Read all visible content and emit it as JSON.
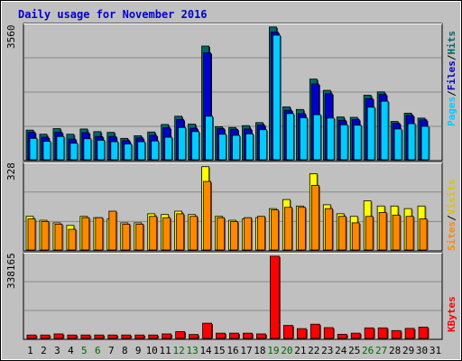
{
  "title": "Daily usage for November 2016",
  "colors": {
    "hits": "#006666",
    "files": "#0000cc",
    "pages": "#00ccff",
    "visits": "#ffff00",
    "sites": "#ff8800",
    "kbytes": "#ff0000",
    "weekend_day": "#006600",
    "weekday": "#000000",
    "title": "#0000cc"
  },
  "chart_data": [
    {
      "type": "bar",
      "panel": "hits-files-pages",
      "ylim": [
        0,
        3560
      ],
      "y_max_label": "3560",
      "legend": [
        "Pages",
        "/",
        "Files",
        "/",
        "Hits"
      ],
      "categories": [
        "1",
        "2",
        "3",
        "4",
        "5",
        "6",
        "7",
        "8",
        "9",
        "10",
        "11",
        "12",
        "13",
        "14",
        "15",
        "16",
        "17",
        "18",
        "19",
        "20",
        "21",
        "22",
        "23",
        "24",
        "25",
        "26",
        "27",
        "28",
        "29",
        "30",
        "31"
      ],
      "series": [
        {
          "name": "Hits",
          "values": [
            790,
            680,
            830,
            680,
            820,
            750,
            730,
            570,
            640,
            740,
            940,
            1160,
            950,
            3030,
            880,
            860,
            910,
            990,
            3540,
            1410,
            1340,
            2150,
            1850,
            1140,
            1130,
            1720,
            1810,
            1020,
            1240,
            1110,
            0
          ]
        },
        {
          "name": "Files",
          "values": [
            730,
            600,
            730,
            550,
            720,
            620,
            620,
            510,
            580,
            650,
            850,
            1070,
            840,
            2850,
            830,
            810,
            820,
            920,
            3400,
            1320,
            1230,
            2020,
            1760,
            1050,
            1070,
            1630,
            1740,
            970,
            1180,
            1060,
            0
          ]
        },
        {
          "name": "Pages",
          "values": [
            570,
            490,
            620,
            440,
            560,
            520,
            480,
            420,
            480,
            500,
            600,
            860,
            750,
            1160,
            680,
            650,
            690,
            800,
            3320,
            1230,
            1120,
            1200,
            1110,
            930,
            920,
            1400,
            1560,
            820,
            960,
            890,
            0
          ]
        }
      ]
    },
    {
      "type": "bar",
      "panel": "visits-sites",
      "ylim": [
        0,
        328
      ],
      "y_max_label": "328",
      "legend": [
        "Sites",
        "/",
        "Visits"
      ],
      "categories": [
        "1",
        "2",
        "3",
        "4",
        "5",
        "6",
        "7",
        "8",
        "9",
        "10",
        "11",
        "12",
        "13",
        "14",
        "15",
        "16",
        "17",
        "18",
        "19",
        "20",
        "21",
        "22",
        "23",
        "24",
        "25",
        "26",
        "27",
        "28",
        "29",
        "30",
        "31"
      ],
      "series": [
        {
          "name": "Visits",
          "values": [
            130,
            115,
            105,
            95,
            130,
            125,
            120,
            105,
            105,
            140,
            137,
            150,
            137,
            322,
            130,
            115,
            120,
            125,
            160,
            195,
            170,
            295,
            175,
            140,
            130,
            190,
            170,
            170,
            160,
            170,
            0
          ]
        },
        {
          "name": "Sites",
          "values": [
            120,
            110,
            100,
            80,
            125,
            125,
            150,
            100,
            100,
            130,
            125,
            140,
            130,
            265,
            125,
            110,
            125,
            130,
            155,
            165,
            165,
            250,
            160,
            130,
            105,
            130,
            145,
            135,
            130,
            120,
            0
          ]
        }
      ]
    },
    {
      "type": "bar",
      "panel": "kbytes",
      "ylim": [
        0,
        338165
      ],
      "y_max_label": "338165",
      "legend": [
        "KBytes"
      ],
      "categories": [
        "1",
        "2",
        "3",
        "4",
        "5",
        "6",
        "7",
        "8",
        "9",
        "10",
        "11",
        "12",
        "13",
        "14",
        "15",
        "16",
        "17",
        "18",
        "19",
        "20",
        "21",
        "22",
        "23",
        "24",
        "25",
        "26",
        "27",
        "28",
        "29",
        "30",
        "31"
      ],
      "series": [
        {
          "name": "KBytes",
          "values": [
            14000,
            14000,
            18500,
            14000,
            14000,
            14000,
            14000,
            14000,
            14000,
            14000,
            18500,
            28000,
            16000,
            62000,
            21500,
            21500,
            21500,
            18500,
            335000,
            53000,
            40000,
            58000,
            44000,
            17000,
            21500,
            43000,
            43000,
            32000,
            41000,
            46000,
            0
          ]
        }
      ]
    }
  ],
  "x_labels": {
    "days": [
      "1",
      "2",
      "3",
      "4",
      "5",
      "6",
      "7",
      "8",
      "9",
      "10",
      "11",
      "12",
      "13",
      "14",
      "15",
      "16",
      "17",
      "18",
      "19",
      "20",
      "21",
      "22",
      "23",
      "24",
      "25",
      "26",
      "27",
      "28",
      "29",
      "30",
      "31"
    ],
    "weekend": [
      "5",
      "6",
      "12",
      "13",
      "19",
      "20",
      "26",
      "27"
    ]
  }
}
